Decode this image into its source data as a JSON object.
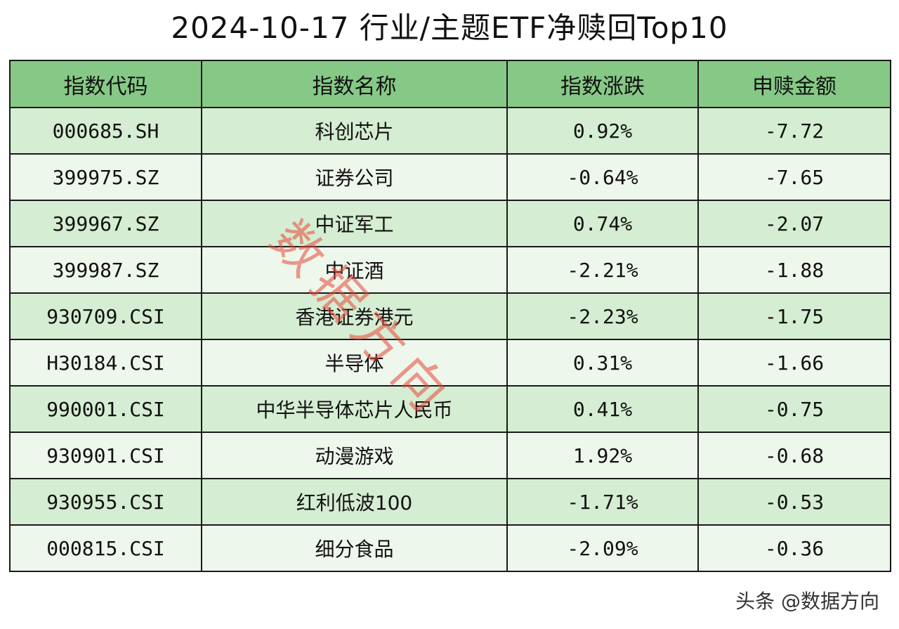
{
  "title": "2024-10-17 行业/主题ETF净赎回Top10",
  "table": {
    "headers": [
      "指数代码",
      "指数名称",
      "指数涨跌",
      "申赎金额"
    ],
    "rows": [
      {
        "code": "000685.SH",
        "name": "科创芯片",
        "change": "0.92%",
        "amount": "-7.72"
      },
      {
        "code": "399975.SZ",
        "name": "证券公司",
        "change": "-0.64%",
        "amount": "-7.65"
      },
      {
        "code": "399967.SZ",
        "name": "中证军工",
        "change": "0.74%",
        "amount": "-2.07"
      },
      {
        "code": "399987.SZ",
        "name": "中证酒",
        "change": "-2.21%",
        "amount": "-1.88"
      },
      {
        "code": "930709.CSI",
        "name": "香港证券港元",
        "change": "-2.23%",
        "amount": "-1.75"
      },
      {
        "code": "H30184.CSI",
        "name": "半导体",
        "change": "0.31%",
        "amount": "-1.66"
      },
      {
        "code": "990001.CSI",
        "name": "中华半导体芯片人民币",
        "change": "0.41%",
        "amount": "-0.75"
      },
      {
        "code": "930901.CSI",
        "name": "动漫游戏",
        "change": "1.92%",
        "amount": "-0.68"
      },
      {
        "code": "930955.CSI",
        "name": "红利低波100",
        "change": "-1.71%",
        "amount": "-0.53"
      },
      {
        "code": "000815.CSI",
        "name": "细分食品",
        "change": "-2.09%",
        "amount": "-0.36"
      }
    ]
  },
  "watermark": "数据方向",
  "footer": "头条 @数据方向",
  "colors": {
    "header_bg": "#86c986",
    "row_odd_bg": "#d5edd2",
    "row_even_bg": "#eef7ec",
    "watermark": "#e84637",
    "border": "#1a1a1a"
  }
}
